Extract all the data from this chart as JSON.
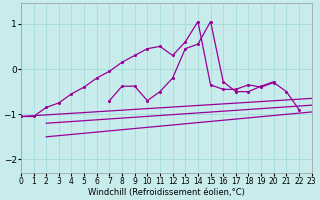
{
  "xlabel": "Windchill (Refroidissement éolien,°C)",
  "bg_color": "#c8ecec",
  "grid_color": "#aadddd",
  "line_color": "#990099",
  "xlim": [
    0,
    23
  ],
  "ylim": [
    -2.3,
    1.45
  ],
  "yticks": [
    -2,
    -1,
    0,
    1
  ],
  "xticks": [
    0,
    1,
    2,
    3,
    4,
    5,
    6,
    7,
    8,
    9,
    10,
    11,
    12,
    13,
    14,
    15,
    16,
    17,
    18,
    19,
    20,
    21,
    22,
    23
  ],
  "series": [
    {
      "x": [
        0,
        1,
        2,
        3,
        4,
        5,
        6,
        7,
        8,
        9,
        10,
        11,
        12,
        13,
        14,
        15,
        16,
        17,
        18,
        19,
        20,
        21,
        22
      ],
      "y": [
        -1.05,
        -1.05,
        -0.85,
        -0.75,
        -0.55,
        -0.4,
        -0.2,
        -0.05,
        0.15,
        0.3,
        0.45,
        0.5,
        0.3,
        0.6,
        1.05,
        -0.35,
        -0.45,
        -0.45,
        -0.35,
        -0.4,
        -0.3,
        -0.5,
        -0.9
      ]
    },
    {
      "x": [
        7,
        8,
        9,
        10,
        11,
        12,
        13,
        14,
        15,
        16,
        17,
        18,
        19,
        20
      ],
      "y": [
        -0.7,
        -0.38,
        -0.38,
        -0.7,
        -0.5,
        -0.2,
        0.45,
        0.55,
        1.05,
        -0.28,
        -0.5,
        -0.5,
        -0.38,
        -0.28
      ]
    },
    {
      "x": [
        0,
        23
      ],
      "y": [
        -1.05,
        -0.65
      ]
    },
    {
      "x": [
        2,
        23
      ],
      "y": [
        -1.2,
        -0.8
      ]
    },
    {
      "x": [
        2,
        23
      ],
      "y": [
        -1.5,
        -0.95
      ]
    }
  ]
}
